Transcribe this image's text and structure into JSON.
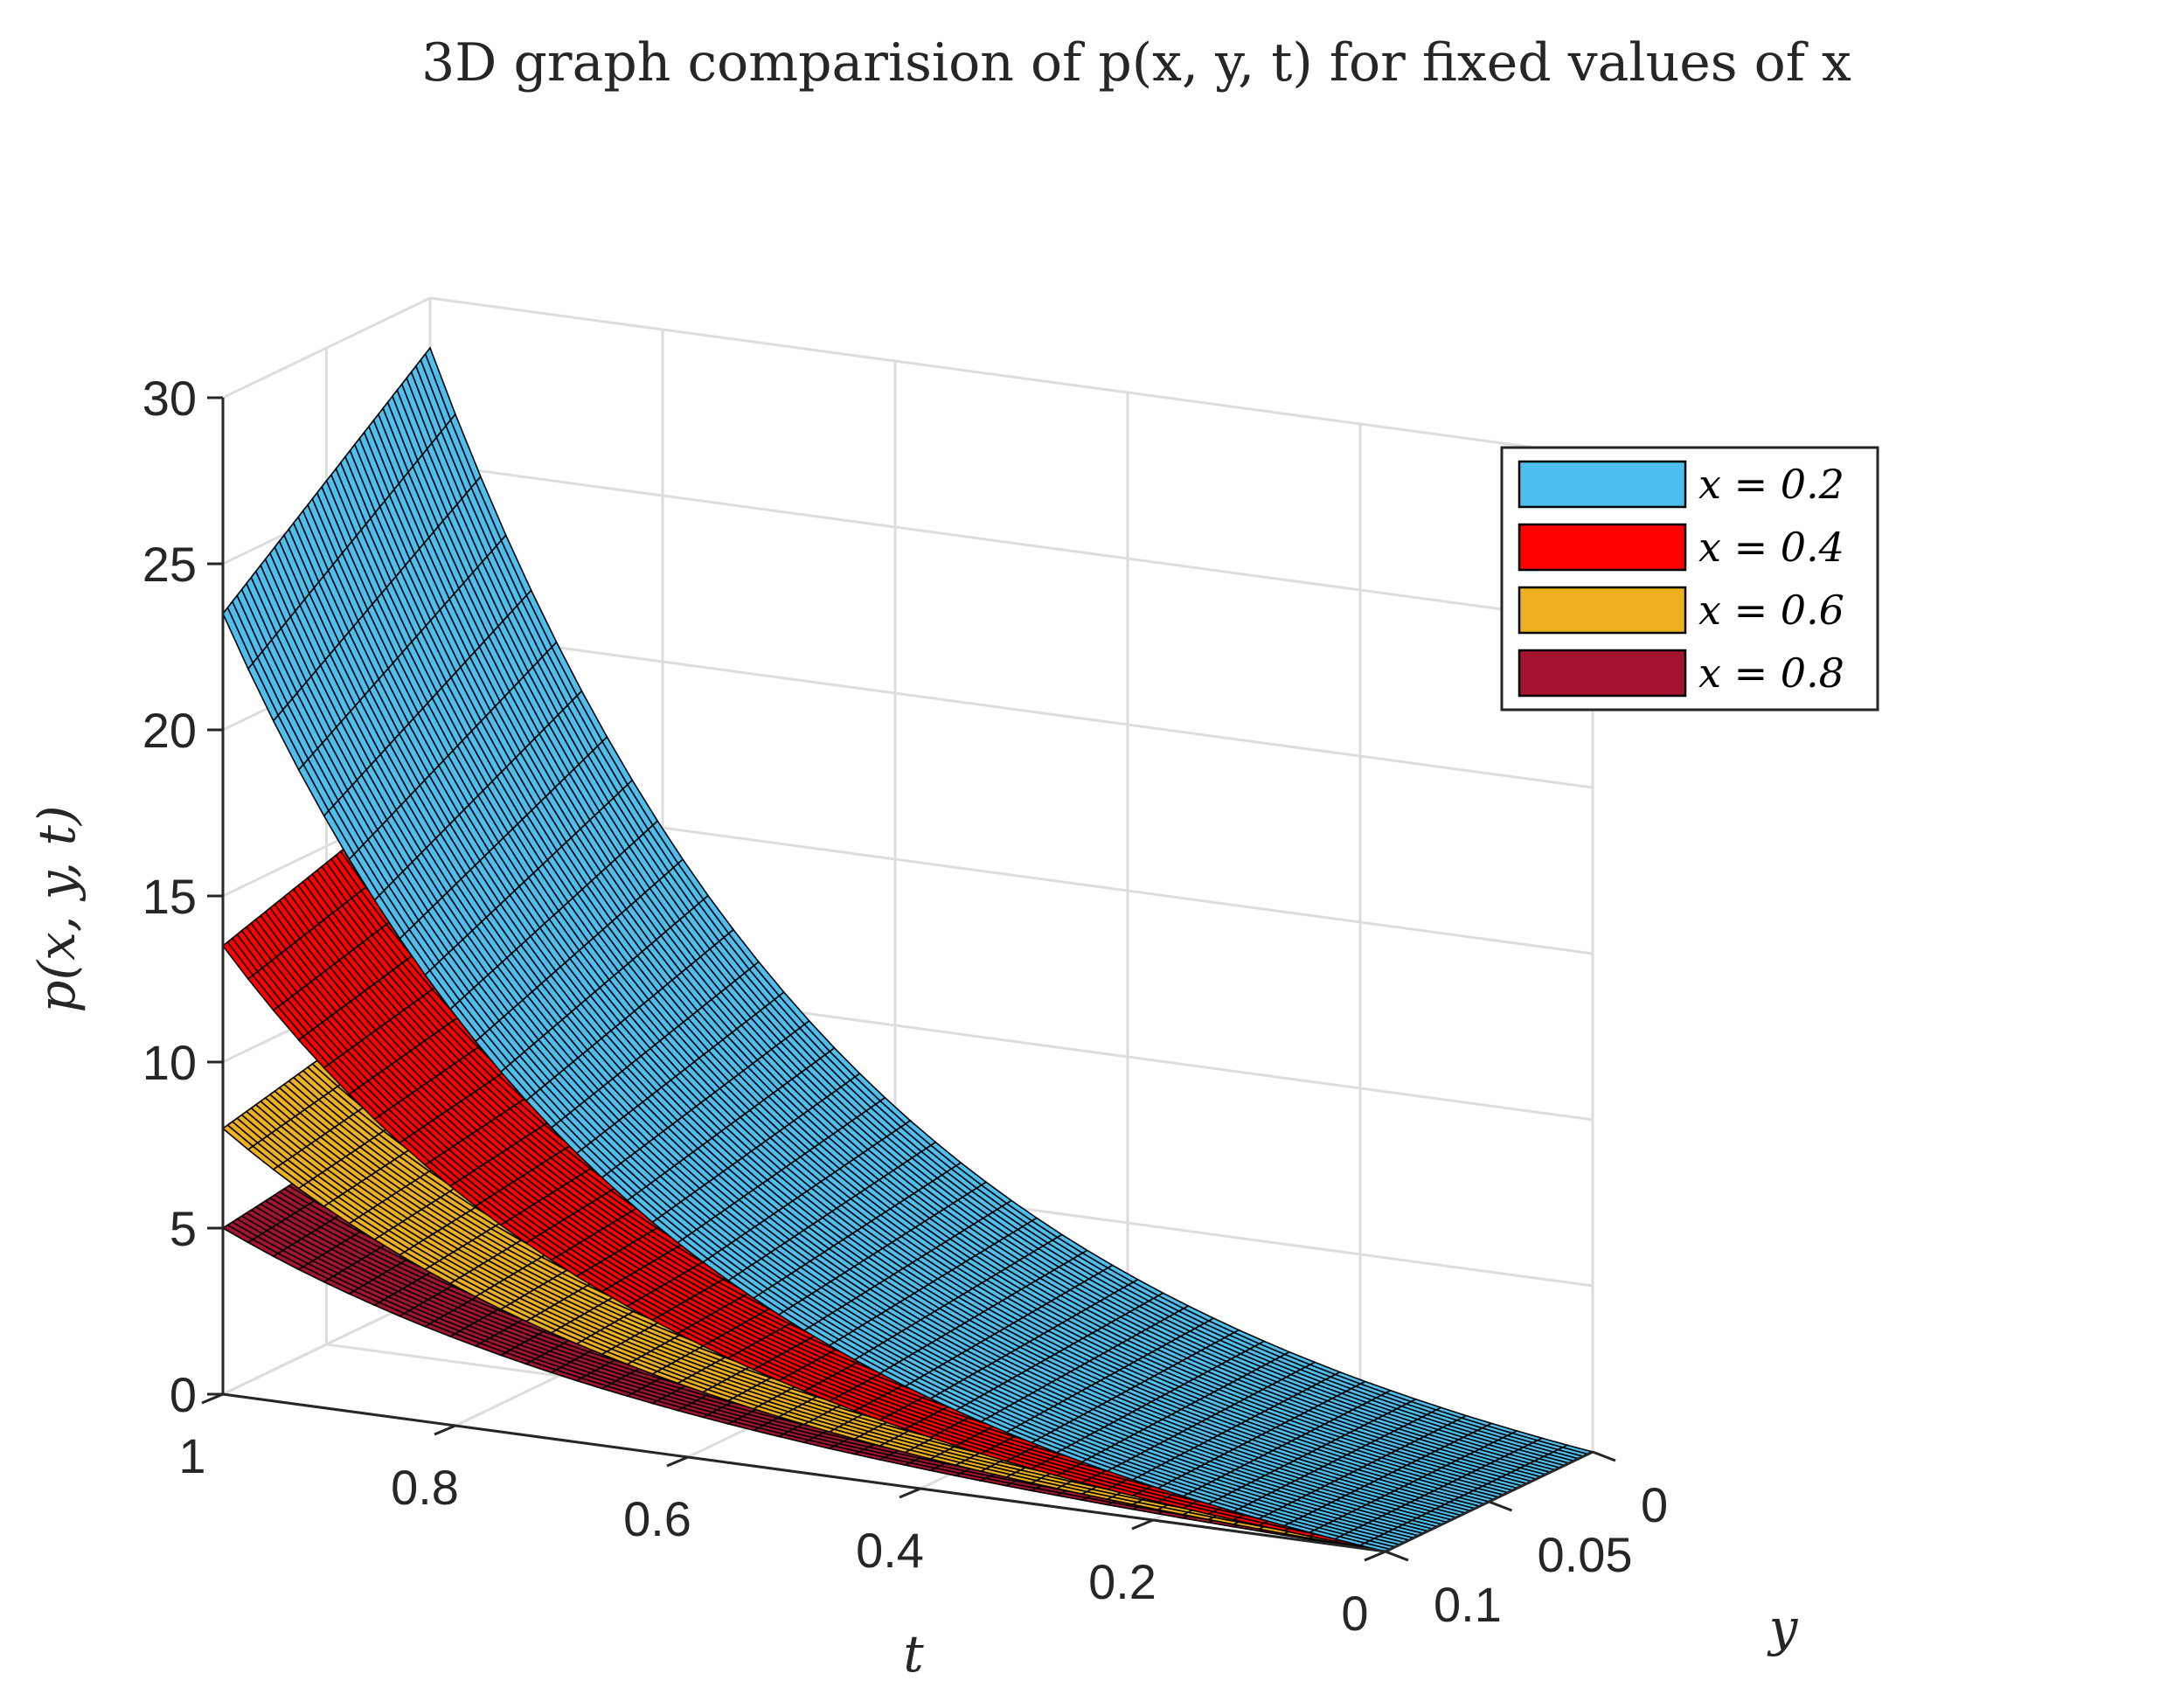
{
  "chart_data": {
    "type": "surface",
    "title": "3D graph comparision of p(x, y, t) for fixed values of x",
    "xlabel": "t",
    "ylabel": "y",
    "zlabel": "p(x, y, t)",
    "t_range": [
      0,
      1
    ],
    "y_range": [
      0,
      0.1
    ],
    "z_range": [
      0,
      30
    ],
    "t_ticks": [
      0,
      0.2,
      0.4,
      0.6,
      0.8,
      1
    ],
    "y_ticks": [
      0,
      0.05,
      0.1
    ],
    "z_ticks": [
      0,
      5,
      10,
      15,
      20,
      25,
      30
    ],
    "t_tick_labels": [
      "0",
      "0.2",
      "0.4",
      "0.6",
      "0.8",
      "1"
    ],
    "y_tick_labels": [
      "0",
      "0.05",
      "0.1"
    ],
    "z_tick_labels": [
      "0",
      "5",
      "10",
      "15",
      "20",
      "25",
      "30"
    ],
    "grid": true,
    "legend_position": "top-right",
    "series": [
      {
        "name": "x = 0.2",
        "color": "#4dbeee",
        "corner_values": {
          "t1_y0.1": 23.5,
          "t1_y0": 28.5,
          "t0_y0.1": 0,
          "t0_y0": 0
        }
      },
      {
        "name": "x = 0.4",
        "color": "#ff0000",
        "corner_values": {
          "t1_y0.1": 13.5,
          "t1_y0": 15.5,
          "t0_y0.1": 0,
          "t0_y0": 0
        }
      },
      {
        "name": "x = 0.6",
        "color": "#edb120",
        "corner_values": {
          "t1_y0.1": 8.0,
          "t1_y0": 9.5,
          "t0_y0.1": 0,
          "t0_y0": 0
        }
      },
      {
        "name": "x = 0.8",
        "color": "#a2142f",
        "corner_values": {
          "t1_y0.1": 5.0,
          "t1_y0": 6.0,
          "t0_y0.1": 0,
          "t0_y0": 0
        }
      }
    ]
  }
}
